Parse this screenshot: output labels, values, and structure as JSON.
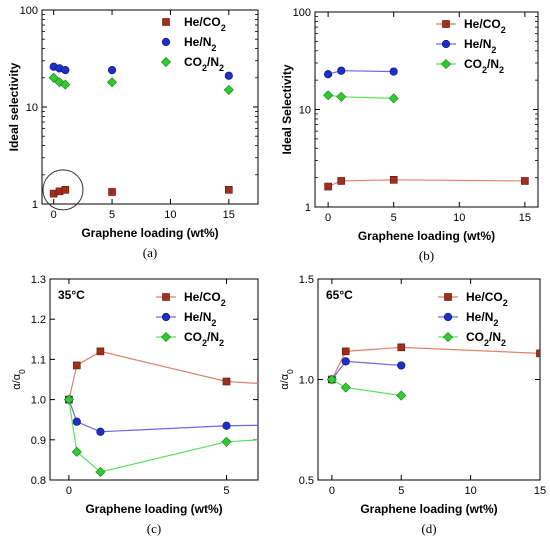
{
  "colors": {
    "he_co2": "#a0301e",
    "he_n2": "#1e2fc8",
    "co2_n2": "#2ecc2e",
    "he_co2_line": "#e0826a",
    "he_n2_line": "#6a6ae6",
    "co2_n2_line": "#5ee05e"
  },
  "chart_data": [
    {
      "panel": "(a)",
      "type": "scatter",
      "xlabel": "Graphene loading (wt%)",
      "ylabel": "Ideal selectivity",
      "yscale": "log",
      "xlim": [
        -1,
        17.5
      ],
      "ylim": [
        1,
        100
      ],
      "xticks": [
        0,
        5,
        10,
        15
      ],
      "yticks": [
        1,
        10,
        100
      ],
      "legend": "top-right",
      "series": [
        {
          "name": "He/CO2",
          "marker": "square",
          "color": "he_co2",
          "line": false,
          "points": [
            [
              0,
              1.28
            ],
            [
              0.5,
              1.35
            ],
            [
              1,
              1.4
            ],
            [
              5,
              1.33
            ],
            [
              15,
              1.4
            ]
          ]
        },
        {
          "name": "He/N2",
          "marker": "circle",
          "color": "he_n2",
          "line": false,
          "points": [
            [
              0,
              26
            ],
            [
              0.5,
              25
            ],
            [
              1,
              24
            ],
            [
              5,
              24
            ],
            [
              15,
              21
            ]
          ]
        },
        {
          "name": "CO2/N2",
          "marker": "diamond",
          "color": "co2_n2",
          "line": false,
          "points": [
            [
              0,
              20
            ],
            [
              0.5,
              18
            ],
            [
              1,
              17
            ],
            [
              5,
              18
            ],
            [
              15,
              15
            ]
          ]
        }
      ],
      "annotations": [
        {
          "type": "circle",
          "x": 0.8,
          "y": 1.4
        }
      ]
    },
    {
      "panel": "(b)",
      "type": "line",
      "xlabel": "Graphene loading (wt%)",
      "ylabel": "Ideal Selectivity",
      "yscale": "log",
      "xlim": [
        -1,
        16
      ],
      "ylim": [
        1,
        100
      ],
      "xticks": [
        0,
        5,
        10,
        15
      ],
      "yticks": [
        1,
        10,
        100
      ],
      "legend": "top-right",
      "series": [
        {
          "name": "He/CO2",
          "marker": "square",
          "color": "he_co2",
          "line": true,
          "points": [
            [
              0,
              1.62
            ],
            [
              1,
              1.85
            ],
            [
              5,
              1.9
            ],
            [
              15,
              1.85
            ]
          ]
        },
        {
          "name": "He/N2",
          "marker": "circle",
          "color": "he_n2",
          "line": true,
          "points": [
            [
              0,
              23
            ],
            [
              1,
              25
            ],
            [
              5,
              24.5
            ]
          ]
        },
        {
          "name": "CO2/N2",
          "marker": "diamond",
          "color": "co2_n2",
          "line": true,
          "points": [
            [
              0,
              14
            ],
            [
              1,
              13.5
            ],
            [
              5,
              13
            ]
          ]
        }
      ]
    },
    {
      "panel": "(c)",
      "type": "line",
      "xlabel": "Graphene loading (wt%)",
      "ylabel": "α/α0",
      "yscale": "linear",
      "xlim": [
        -0.6,
        6
      ],
      "ylim": [
        0.8,
        1.3
      ],
      "xticks": [
        0,
        5
      ],
      "yticks": [
        0.8,
        0.9,
        1.0,
        1.1,
        1.2,
        1.3
      ],
      "ytick_labels": [
        "0.8",
        "0.9",
        "1.0",
        "1.1",
        "1.2",
        "1.3"
      ],
      "legend": "top-right",
      "annotation": "35°C",
      "series": [
        {
          "name": "He/CO2",
          "marker": "square",
          "color": "he_co2",
          "line": true,
          "extend_to_edge": true,
          "points": [
            [
              0,
              1.0
            ],
            [
              0.25,
              1.085
            ],
            [
              1,
              1.12
            ],
            [
              5,
              1.045
            ]
          ]
        },
        {
          "name": "He/N2",
          "marker": "circle",
          "color": "he_n2",
          "line": true,
          "extend_to_edge": true,
          "points": [
            [
              0,
              1.0
            ],
            [
              0.25,
              0.945
            ],
            [
              1,
              0.92
            ],
            [
              5,
              0.935
            ]
          ]
        },
        {
          "name": "CO2/N2",
          "marker": "diamond",
          "color": "co2_n2",
          "line": true,
          "extend_to_edge": true,
          "points": [
            [
              0,
              1.0
            ],
            [
              0.25,
              0.87
            ],
            [
              1,
              0.82
            ],
            [
              5,
              0.895
            ]
          ]
        }
      ]
    },
    {
      "panel": "(d)",
      "type": "line",
      "xlabel": "Graphene loading (wt%)",
      "ylabel": "α/α0",
      "yscale": "linear",
      "xlim": [
        -1,
        15
      ],
      "ylim": [
        0.5,
        1.5
      ],
      "xticks": [
        0,
        5,
        10,
        15
      ],
      "yticks": [
        0.5,
        1.0,
        1.5
      ],
      "ytick_labels": [
        "0.5",
        "1.0",
        "1.5"
      ],
      "legend": "top-right",
      "annotation": "65°C",
      "series": [
        {
          "name": "He/CO2",
          "marker": "square",
          "color": "he_co2",
          "line": true,
          "points": [
            [
              0,
              1.0
            ],
            [
              1,
              1.14
            ],
            [
              5,
              1.16
            ],
            [
              15,
              1.13
            ]
          ]
        },
        {
          "name": "He/N2",
          "marker": "circle",
          "color": "he_n2",
          "line": true,
          "points": [
            [
              0,
              1.0
            ],
            [
              1,
              1.09
            ],
            [
              5,
              1.07
            ]
          ]
        },
        {
          "name": "CO2/N2",
          "marker": "diamond",
          "color": "co2_n2",
          "line": true,
          "points": [
            [
              0,
              1.0
            ],
            [
              1,
              0.96
            ],
            [
              5,
              0.92
            ]
          ]
        }
      ]
    }
  ]
}
